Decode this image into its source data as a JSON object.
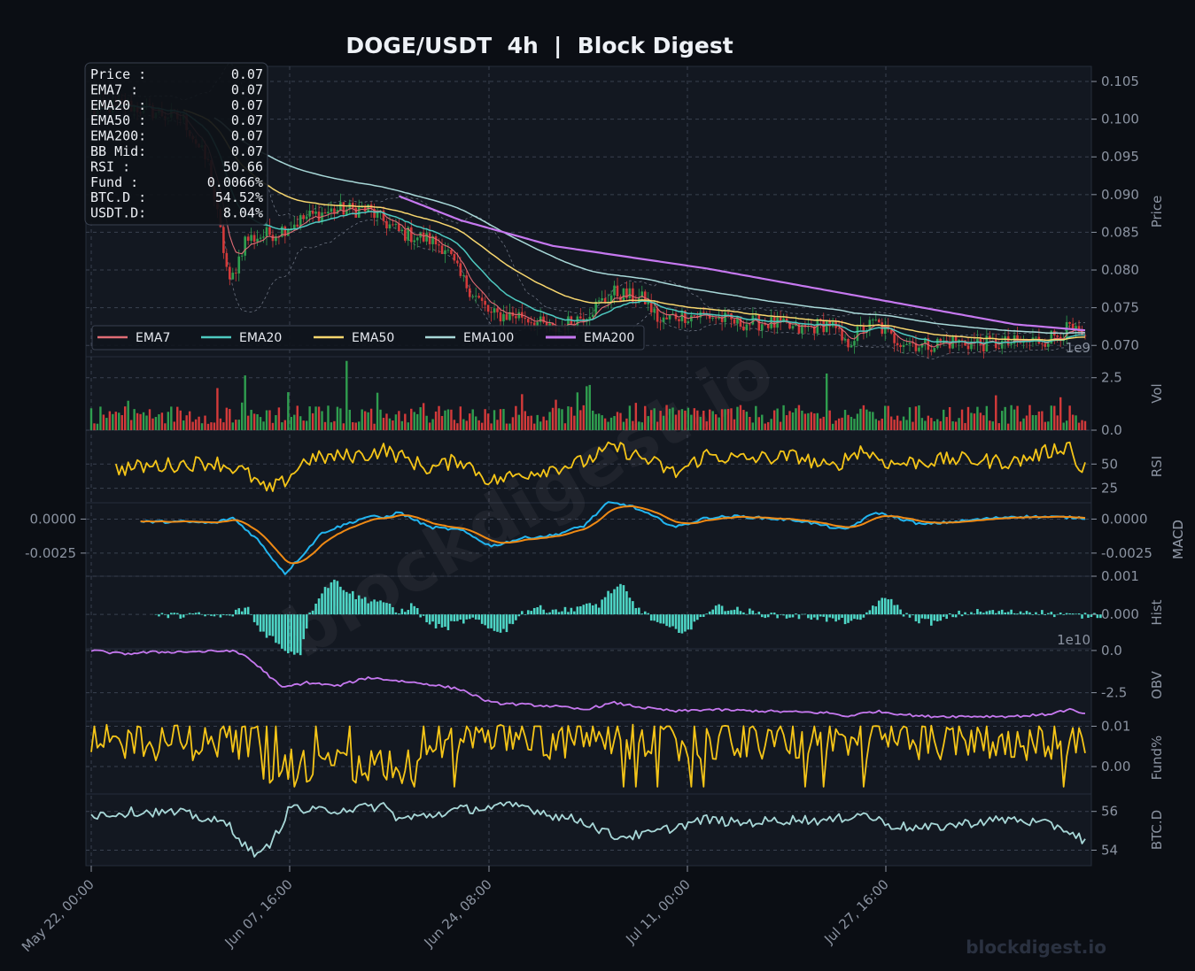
{
  "chart_data": {
    "type": "line",
    "title": "DOGE/USDT  4h  |  Block Digest",
    "watermark": "blockdigest.io",
    "footer_brand": "blockdigest.io",
    "x_ticks": [
      "May 22, 00:00",
      "Jun 07, 16:00",
      "Jun 24, 08:00",
      "Jul 11, 00:00",
      "Jul 27, 16:00"
    ],
    "info_box": [
      {
        "label": "Price :",
        "value": "0.07"
      },
      {
        "label": "EMA7  :",
        "value": "0.07"
      },
      {
        "label": "EMA20 :",
        "value": "0.07"
      },
      {
        "label": "EMA50 :",
        "value": "0.07"
      },
      {
        "label": "EMA200:",
        "value": "0.07"
      },
      {
        "label": "BB Mid:",
        "value": "0.07"
      },
      {
        "label": "RSI   :",
        "value": "50.66"
      },
      {
        "label": "Fund  :",
        "value": "0.0066%"
      },
      {
        "label": "BTC.D :",
        "value": "54.52%"
      },
      {
        "label": "USDT.D:",
        "value": "8.04%"
      }
    ],
    "legend": [
      {
        "name": "EMA7",
        "color": "#e06c75"
      },
      {
        "name": "EMA20",
        "color": "#4ec9c0"
      },
      {
        "name": "EMA50",
        "color": "#f7d66e"
      },
      {
        "name": "EMA100",
        "color": "#a8d8d8"
      },
      {
        "name": "EMA200",
        "color": "#c678f0"
      }
    ],
    "panels": {
      "price": {
        "ylabel": "Price",
        "ylim": [
          0.0685,
          0.107
        ],
        "ticks": [
          "0.070",
          "0.075",
          "0.080",
          "0.085",
          "0.090",
          "0.095",
          "0.100",
          "0.105"
        ],
        "exponent": "1e9",
        "close_keys": [
          [
            0,
            0.101
          ],
          [
            10,
            0.102
          ],
          [
            20,
            0.101
          ],
          [
            30,
            0.1
          ],
          [
            38,
            0.094
          ],
          [
            42,
            0.085
          ],
          [
            45,
            0.078
          ],
          [
            50,
            0.084
          ],
          [
            60,
            0.085
          ],
          [
            70,
            0.087
          ],
          [
            80,
            0.088
          ],
          [
            90,
            0.088
          ],
          [
            100,
            0.085
          ],
          [
            110,
            0.084
          ],
          [
            115,
            0.083
          ],
          [
            120,
            0.079
          ],
          [
            130,
            0.074
          ],
          [
            140,
            0.074
          ],
          [
            150,
            0.072
          ],
          [
            160,
            0.074
          ],
          [
            170,
            0.077
          ],
          [
            180,
            0.076
          ],
          [
            185,
            0.073
          ],
          [
            190,
            0.074
          ],
          [
            200,
            0.074
          ],
          [
            210,
            0.073
          ],
          [
            220,
            0.073
          ],
          [
            230,
            0.072
          ],
          [
            240,
            0.073
          ],
          [
            245,
            0.07
          ],
          [
            250,
            0.072
          ],
          [
            255,
            0.073
          ],
          [
            260,
            0.071
          ],
          [
            270,
            0.07
          ],
          [
            280,
            0.0705
          ],
          [
            290,
            0.0702
          ],
          [
            300,
            0.0703
          ],
          [
            310,
            0.0708
          ],
          [
            318,
            0.0722
          ],
          [
            323,
            0.0705
          ]
        ],
        "ema200": [
          [
            100,
            0.0898
          ],
          [
            120,
            0.0866
          ],
          [
            150,
            0.0832
          ],
          [
            200,
            0.0802
          ],
          [
            250,
            0.0765
          ],
          [
            300,
            0.0728
          ],
          [
            323,
            0.072
          ]
        ]
      },
      "vol": {
        "ylabel": "Vol",
        "ylim": [
          0,
          3.5
        ],
        "ticks": [
          "0.0",
          "2.5"
        ]
      },
      "rsi": {
        "ylabel": "RSI",
        "ylim": [
          10,
          85
        ],
        "ticks": [
          "25",
          "50"
        ],
        "color": "#f5c518"
      },
      "macd": {
        "ylabel": "MACD",
        "ylim": [
          -0.0042,
          0.0012
        ],
        "ticks_right": [
          "-0.0025",
          "0.0000"
        ],
        "ticks_left": [
          "-0.0025",
          "0.0000"
        ],
        "macd_color": "#22b5f0",
        "signal_color": "#f08a14"
      },
      "hist": {
        "ylabel": "Hist",
        "ylim": [
          -0.0009,
          0.001
        ],
        "ticks": [
          "0.000",
          "0.001"
        ],
        "exponent": "1e10",
        "color": "#4ed6c6"
      },
      "obv": {
        "ylabel": "OBV",
        "ylim": [
          -4.2,
          0.1
        ],
        "ticks": [
          "-2.5",
          "0.0"
        ],
        "color": "#c678f0"
      },
      "fund": {
        "ylabel": "Fund%",
        "ylim": [
          -0.0068,
          0.0112
        ],
        "ticks": [
          "0.00",
          "0.01"
        ],
        "color": "#f5c518"
      },
      "btcd": {
        "ylabel": "BTC.D",
        "ylim": [
          53.2,
          56.9
        ],
        "ticks": [
          "54",
          "56"
        ],
        "color": "#a8d8d8"
      }
    },
    "colors": {
      "bg": "#0b0e14",
      "panel": "#131821",
      "up": "#2f9e4f",
      "down": "#d43a3a"
    }
  }
}
